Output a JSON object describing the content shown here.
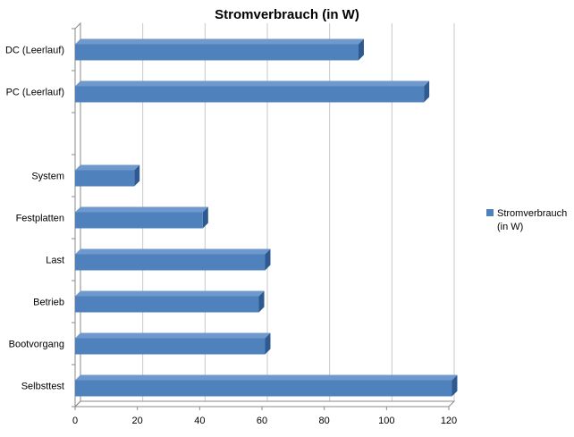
{
  "chart_data": {
    "type": "bar",
    "orientation": "horizontal",
    "three_d": true,
    "title": "Stromverbrauch (in W)",
    "xlabel": "",
    "ylabel": "",
    "categories": [
      "DC (Leerlauf)",
      "PC (Leerlauf)",
      "",
      "System",
      "Festplatten",
      "Last",
      "Betrieb",
      "Bootvorgang",
      "Selbsttest"
    ],
    "series": [
      {
        "name": "Stromverbrauch (in W)",
        "legend_lines": [
          "Stromverbrauch",
          "(in W)"
        ],
        "values": [
          91,
          112,
          null,
          19,
          41,
          61,
          59,
          61,
          121
        ]
      }
    ],
    "xlim": [
      0,
      120
    ],
    "xticks": [
      0,
      20,
      40,
      60,
      80,
      100,
      120
    ],
    "grid": true,
    "legend": "right",
    "colors": {
      "bar_front": "#4f81bd",
      "bar_top": "#6f98cc",
      "bar_side": "#2f5a8f",
      "grid": "#c8c8c8",
      "axis": "#8a8a8a"
    }
  }
}
